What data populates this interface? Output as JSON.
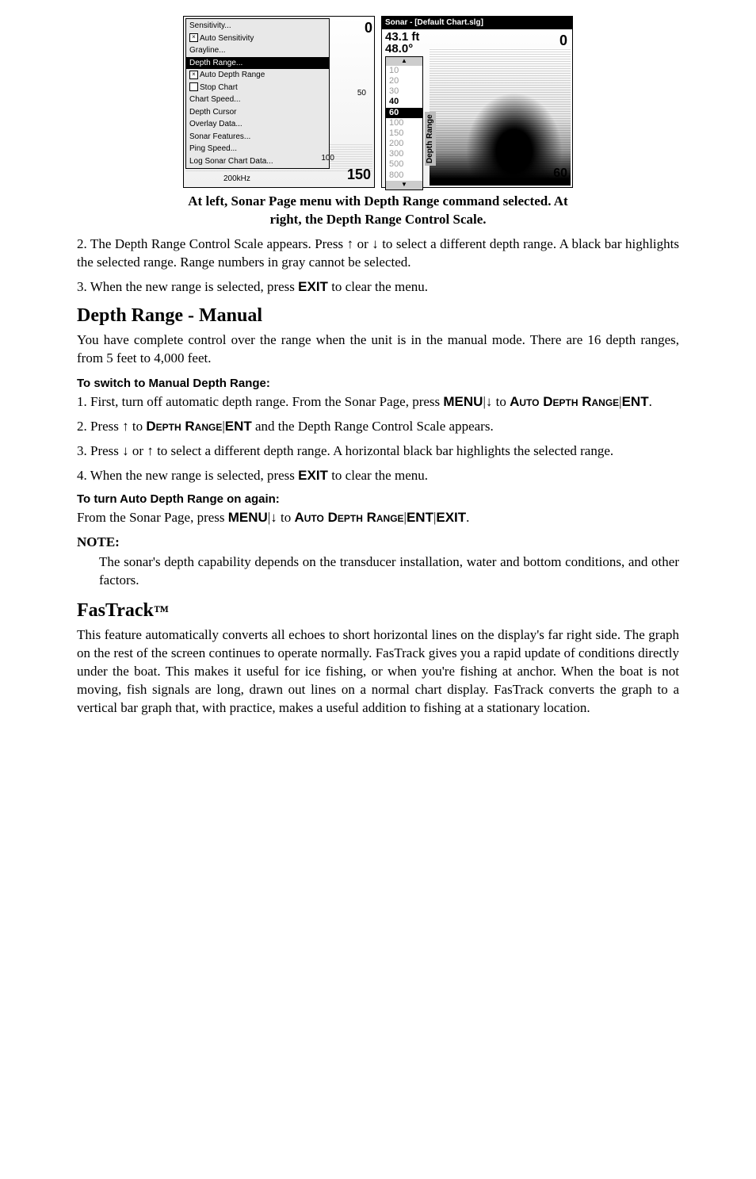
{
  "figure": {
    "left": {
      "menu_items": [
        {
          "label": "Sensitivity...",
          "checkbox": null,
          "selected": false
        },
        {
          "label": "Auto Sensitivity",
          "checkbox": "x",
          "selected": false
        },
        {
          "label": "Grayline...",
          "checkbox": null,
          "selected": false
        },
        {
          "label": "Depth Range...",
          "checkbox": null,
          "selected": true
        },
        {
          "label": "Auto Depth Range",
          "checkbox": "x",
          "selected": false
        },
        {
          "label": "Stop Chart",
          "checkbox": " ",
          "selected": false
        },
        {
          "label": "Chart Speed...",
          "checkbox": null,
          "selected": false
        },
        {
          "label": "Depth Cursor",
          "checkbox": null,
          "selected": false
        },
        {
          "label": "Overlay Data...",
          "checkbox": null,
          "selected": false
        },
        {
          "label": "Sonar Features...",
          "checkbox": null,
          "selected": false
        },
        {
          "label": "Ping Speed...",
          "checkbox": null,
          "selected": false
        },
        {
          "label": "Log Sonar Chart Data...",
          "checkbox": null,
          "selected": false
        }
      ],
      "top_val": "0",
      "mid_val": "50",
      "val_100": "100",
      "bottom_val": "150",
      "khz": "200kHz"
    },
    "right": {
      "title": "Sonar - [Default Chart.slg]",
      "readout1": "43.1 ft",
      "readout2": "48.0°",
      "top_val": "0",
      "range_values": [
        {
          "v": "10",
          "cls": ""
        },
        {
          "v": "20",
          "cls": ""
        },
        {
          "v": "30",
          "cls": ""
        },
        {
          "v": "40",
          "cls": "active"
        },
        {
          "v": "60",
          "cls": "selected"
        },
        {
          "v": "100",
          "cls": ""
        },
        {
          "v": "150",
          "cls": ""
        },
        {
          "v": "200",
          "cls": ""
        },
        {
          "v": "300",
          "cls": ""
        },
        {
          "v": "500",
          "cls": ""
        },
        {
          "v": "800",
          "cls": ""
        }
      ],
      "range_label": "Depth Range",
      "corner_val": "60"
    }
  },
  "caption": {
    "line1": "At left, Sonar Page menu with Depth Range command selected. At",
    "line2": "right, the Depth Range Control Scale."
  },
  "intro_steps": {
    "p2a": "2. The Depth Range Control Scale appears. Press ",
    "p2b": " or ",
    "p2c": " to select a different depth range. A black bar highlights the selected range. Range numbers in gray cannot be selected.",
    "p3a": "3. When the new range is selected, press ",
    "p3_exit": "EXIT",
    "p3b": " to clear the menu."
  },
  "sec1": {
    "heading": "Depth Range - Manual",
    "intro": "You have complete control over the range when the unit is in the manual mode. There are 16 depth ranges, from 5 feet to 4,000 feet.",
    "sub1": "To switch to Manual Depth Range:",
    "s1a": "1. First, turn off automatic depth range. From the Sonar Page, press ",
    "menu": "MENU",
    "pipe": "|",
    "to": " to ",
    "adr": "Auto Depth Range",
    "ent": "ENT",
    "period": ".",
    "s2a": "2. Press ",
    "dr": "Depth Range",
    "s2b": " and the Depth Range Control Scale appears.",
    "s3a": "3. Press ",
    "or": " or ",
    "s3b": " to select a different depth range. A horizontal black bar highlights the selected range.",
    "s4a": "4. When the new range is selected, press ",
    "exit": "EXIT",
    "s4b": " to clear the menu.",
    "sub2": "To turn Auto Depth Range on again:",
    "again_a": "From the Sonar Page, press ",
    "note_label": "NOTE:",
    "note_body": "The sonar's depth capability depends on the transducer installation, water and bottom conditions, and other factors."
  },
  "sec2": {
    "heading": "FasTrack",
    "tm": "™",
    "body": "This feature automatically converts all echoes to short horizontal lines on the display's far right side. The graph on the rest of the screen continues to operate normally. FasTrack gives you a rapid update of conditions directly under the boat. This makes it useful for ice fishing, or when you're fishing at anchor. When the boat is not moving, fish signals are long, drawn out lines on a normal chart display. FasTrack converts the graph to a vertical bar graph that, with practice, makes a useful addition to fishing at a stationary location."
  },
  "arrows": {
    "up": "↑",
    "down": "↓"
  }
}
